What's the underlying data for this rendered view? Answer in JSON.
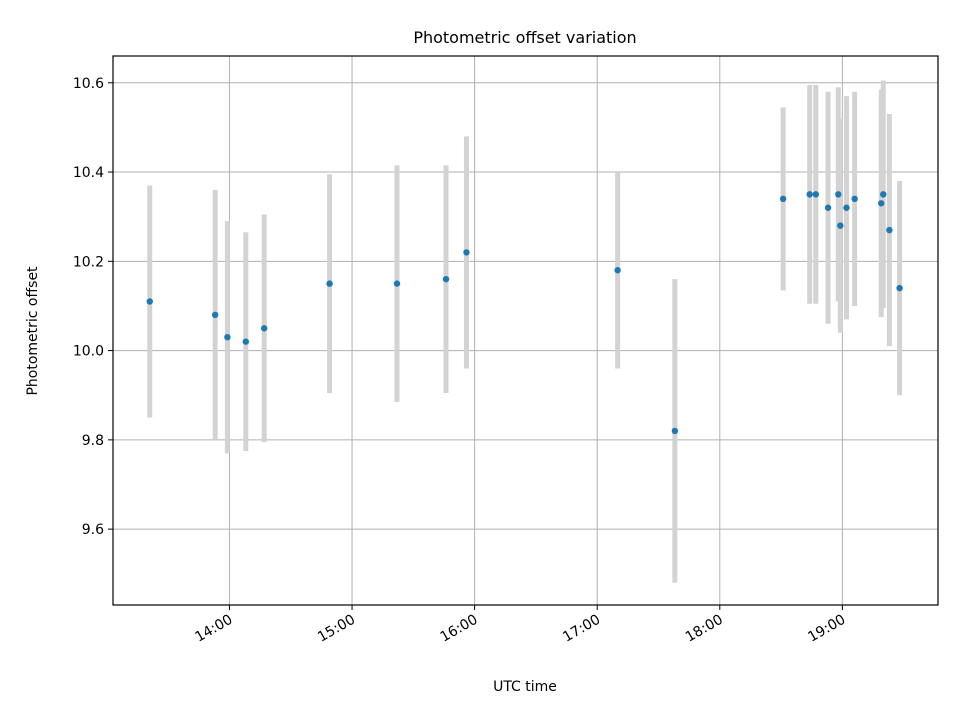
{
  "chart_data": {
    "type": "scatter",
    "title": "Photometric offset variation",
    "xlabel": "UTC time",
    "ylabel": "Photometric offset",
    "x_tick_labels": [
      "14:00",
      "15:00",
      "16:00",
      "17:00",
      "18:00",
      "19:00"
    ],
    "x_tick_hours": [
      14,
      15,
      16,
      17,
      18,
      19
    ],
    "y_tick_labels": [
      "9.6",
      "9.8",
      "10.0",
      "10.2",
      "10.4",
      "10.6"
    ],
    "y_ticks": [
      9.6,
      9.8,
      10.0,
      10.2,
      10.4,
      10.6
    ],
    "xlim_hours": [
      13.05,
      19.78
    ],
    "ylim": [
      9.43,
      10.66
    ],
    "grid": true,
    "point_color": "#1f77b4",
    "errorbar_color": "#d3d3d3",
    "points": [
      {
        "t": "13:21",
        "y": 10.11,
        "err": 0.26
      },
      {
        "t": "13:53",
        "y": 10.08,
        "err": 0.28
      },
      {
        "t": "13:59",
        "y": 10.03,
        "err": 0.26
      },
      {
        "t": "14:08",
        "y": 10.02,
        "err": 0.245
      },
      {
        "t": "14:17",
        "y": 10.05,
        "err": 0.255
      },
      {
        "t": "14:49",
        "y": 10.15,
        "err": 0.245
      },
      {
        "t": "15:22",
        "y": 10.15,
        "err": 0.265
      },
      {
        "t": "15:46",
        "y": 10.16,
        "err": 0.255
      },
      {
        "t": "15:56",
        "y": 10.22,
        "err": 0.26
      },
      {
        "t": "17:10",
        "y": 10.18,
        "err": 0.22
      },
      {
        "t": "17:38",
        "y": 9.82,
        "err": 0.34
      },
      {
        "t": "18:31",
        "y": 10.34,
        "err": 0.205
      },
      {
        "t": "18:44",
        "y": 10.35,
        "err": 0.245
      },
      {
        "t": "18:47",
        "y": 10.35,
        "err": 0.245
      },
      {
        "t": "18:53",
        "y": 10.32,
        "err": 0.26
      },
      {
        "t": "18:58",
        "y": 10.35,
        "err": 0.24
      },
      {
        "t": "18:59",
        "y": 10.28,
        "err": 0.24
      },
      {
        "t": "19:02",
        "y": 10.32,
        "err": 0.25
      },
      {
        "t": "19:06",
        "y": 10.34,
        "err": 0.24
      },
      {
        "t": "19:19",
        "y": 10.33,
        "err": 0.255
      },
      {
        "t": "19:20",
        "y": 10.35,
        "err": 0.255
      },
      {
        "t": "19:23",
        "y": 10.27,
        "err": 0.26
      },
      {
        "t": "19:28",
        "y": 10.14,
        "err": 0.24
      }
    ]
  }
}
